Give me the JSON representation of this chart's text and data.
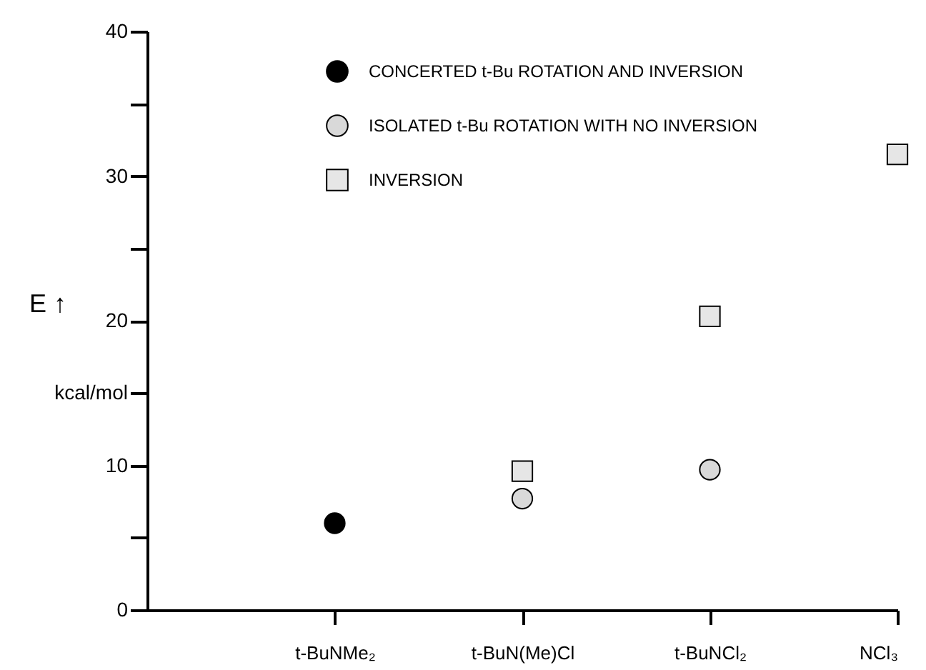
{
  "chart_data": {
    "type": "scatter",
    "categories": [
      "t-BuNMe₂",
      "t-BuN(Me)Cl",
      "t-BuNCl₂",
      "NCl₃"
    ],
    "series": [
      {
        "name": "CONCERTED t-Bu ROTATION AND INVERSION",
        "color": "#000000",
        "marker": "circle",
        "values": [
          6,
          null,
          null,
          null
        ]
      },
      {
        "name": "ISOLATED t-Bu ROTATION WITH NO INVERSION",
        "color": "#d9d9d9",
        "marker": "circle",
        "values": [
          null,
          7.7,
          9.7,
          null
        ]
      },
      {
        "name": "INVERSION",
        "color": "#e6e6e6",
        "marker": "square",
        "values": [
          null,
          9.6,
          20.3,
          31.5
        ]
      }
    ],
    "ylabel": "E ↑",
    "ylim": [
      0,
      40
    ],
    "yticks": [
      0,
      {
        "value": 5,
        "label": null
      },
      10,
      {
        "value": 15,
        "label": "kcal/mol"
      },
      20,
      {
        "value": 25,
        "label": null
      },
      30,
      {
        "value": 35,
        "label": null
      },
      40
    ],
    "grid": false,
    "legend": "top"
  }
}
